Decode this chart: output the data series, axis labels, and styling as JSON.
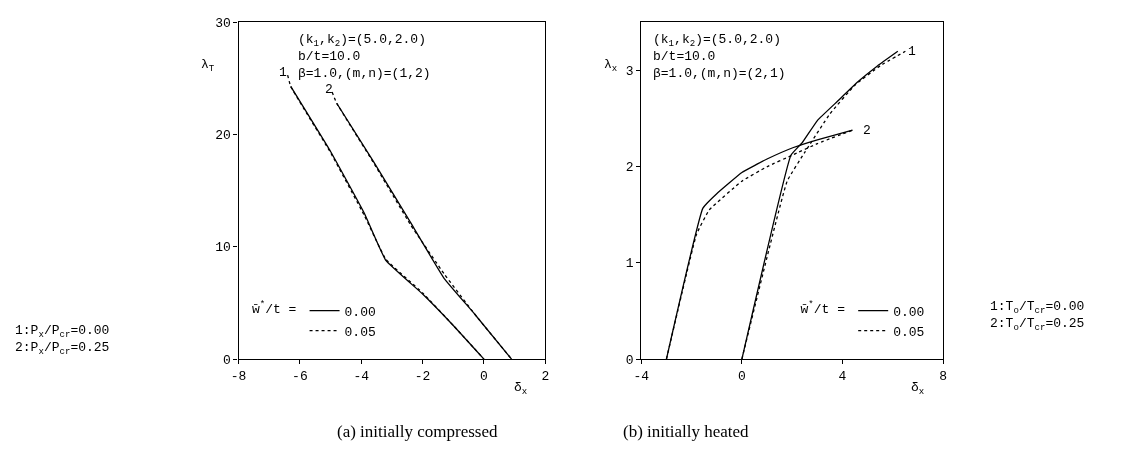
{
  "chart_data": [
    {
      "type": "line",
      "xlabel": "δ$_{x}$",
      "ylabel": "λ$_{T}$",
      "xlim": [
        -8,
        2
      ],
      "ylim": [
        0,
        30
      ],
      "xticks": [
        -8,
        -6,
        -4,
        -2,
        0,
        2
      ],
      "yticks": [
        0,
        10,
        20,
        30
      ],
      "marker": "none",
      "legend": "bottom left",
      "legend_title": "w̄$^{*}$/t =",
      "series": [
        {
          "name": "0.00",
          "color": "#000000",
          "line_style": "solid",
          "x": [
            -6.3,
            -5.0,
            -3.9,
            -3.2,
            -2.0,
            -1.0,
            0.0
          ],
          "values": [
            24.3,
            18.5,
            13.0,
            8.8,
            5.8,
            3.0,
            0.0
          ]
        },
        {
          "name": "0.05",
          "color": "#000000",
          "line_style": "dotted",
          "x": [
            -6.4,
            -6.3,
            -5.0,
            -3.9,
            -3.2,
            -2.0,
            -1.0,
            0.0
          ],
          "values": [
            25.3,
            24.3,
            18.4,
            12.8,
            8.9,
            5.9,
            3.0,
            0.0
          ]
        },
        {
          "color": "#000000",
          "line_style": "solid",
          "x": [
            -4.8,
            -3.6,
            -2.4,
            -1.3,
            -0.3,
            0.9
          ],
          "values": [
            22.8,
            17.6,
            12.2,
            7.2,
            4.0,
            0.0
          ]
        },
        {
          "color": "#000000",
          "line_style": "dotted",
          "x": [
            -4.95,
            -4.8,
            -3.6,
            -2.4,
            -1.3,
            -0.3,
            0.9
          ],
          "values": [
            23.8,
            22.8,
            17.5,
            12.0,
            7.6,
            4.0,
            0.0
          ]
        }
      ],
      "annotations": [
        "1",
        "2",
        "(k$_{1}$,k$_{2}$)=(5.0,2.0)\nb/t=10.0\nβ=1.0,(m,n)=(1,2)",
        "1:P$_{x}$/P$_{cr}$=0.00\n2:P$_{x}$/P$_{cr}$=0.25",
        "(a) initially compressed"
      ]
    },
    {
      "type": "line",
      "xlabel": "δ$_{x}$",
      "ylabel": "λ$_{x}$",
      "xlim": [
        -4,
        8
      ],
      "ylim": [
        0,
        3.5
      ],
      "xticks": [
        -4,
        0,
        4,
        8
      ],
      "yticks": [
        0,
        1,
        2,
        3
      ],
      "marker": "none",
      "legend": "bottom right",
      "legend_title": "w̄$^{*}$/t =",
      "series": [
        {
          "name": "0.00",
          "color": "#000000",
          "line_style": "solid",
          "x": [
            0.0,
            1.95,
            2.4,
            3.0,
            3.8,
            4.6,
            5.4,
            6.2
          ],
          "values": [
            0.0,
            2.12,
            2.25,
            2.48,
            2.68,
            2.88,
            3.05,
            3.2
          ]
        },
        {
          "name": "0.05",
          "color": "#000000",
          "line_style": "dotted",
          "x": [
            0.0,
            1.8,
            2.5,
            3.5,
            4.5,
            5.5,
            6.5
          ],
          "values": [
            0.0,
            1.85,
            2.15,
            2.55,
            2.85,
            3.05,
            3.2
          ]
        },
        {
          "color": "#000000",
          "line_style": "solid",
          "x": [
            -3.0,
            -1.55,
            -1.0,
            0.0,
            1.0,
            2.05,
            3.0,
            4.4
          ],
          "values": [
            0.0,
            1.57,
            1.72,
            1.94,
            2.08,
            2.2,
            2.28,
            2.38
          ]
        },
        {
          "color": "#000000",
          "line_style": "dotted",
          "x": [
            -3.0,
            -1.8,
            -1.3,
            0.0,
            1.0,
            2.0,
            3.0,
            4.4
          ],
          "values": [
            0.0,
            1.3,
            1.55,
            1.85,
            2.0,
            2.12,
            2.24,
            2.38
          ]
        }
      ],
      "annotations": [
        "1",
        "2",
        "(k$_{1}$,k$_{2}$)=(5.0,2.0)\nb/t=10.0\nβ=1.0,(m,n)=(2,1)",
        "1:T$_{o}$/T$_{cr}$=0.00\n2:T$_{o}$/T$_{cr}$=0.25",
        "(b) initially heated"
      ]
    }
  ]
}
